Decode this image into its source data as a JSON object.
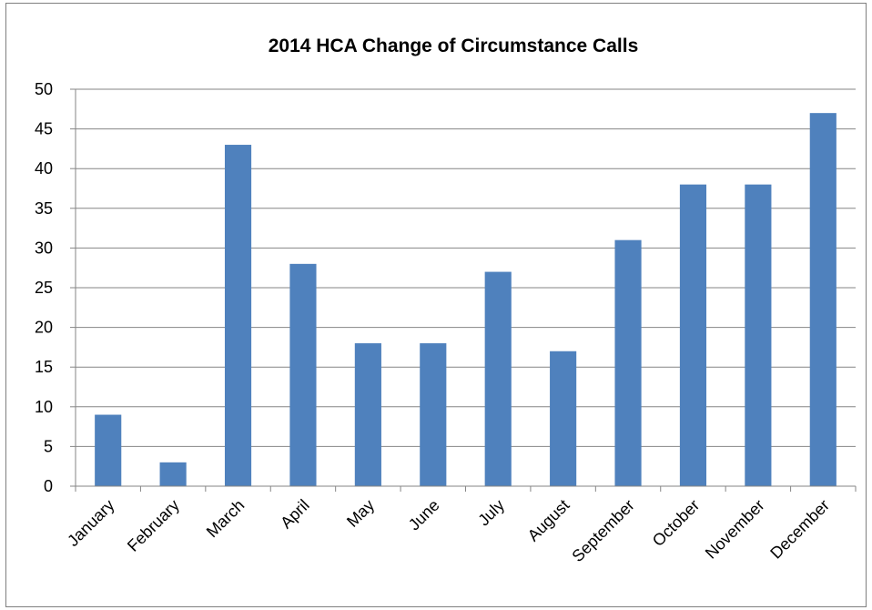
{
  "chart_data": {
    "type": "bar",
    "title": "2014 HCA Change of Circumstance Calls",
    "categories": [
      "January",
      "February",
      "March",
      "April",
      "May",
      "June",
      "July",
      "August",
      "September",
      "October",
      "November",
      "December"
    ],
    "values": [
      9,
      3,
      43,
      28,
      18,
      18,
      27,
      17,
      31,
      38,
      38,
      47
    ],
    "xlabel": "",
    "ylabel": "",
    "ylim": [
      0,
      50
    ],
    "yticks": [
      0,
      5,
      10,
      15,
      20,
      25,
      30,
      35,
      40,
      45,
      50
    ],
    "grid": true,
    "legend": "none",
    "bar_color": "#4F81BD",
    "grid_color": "#868686"
  }
}
